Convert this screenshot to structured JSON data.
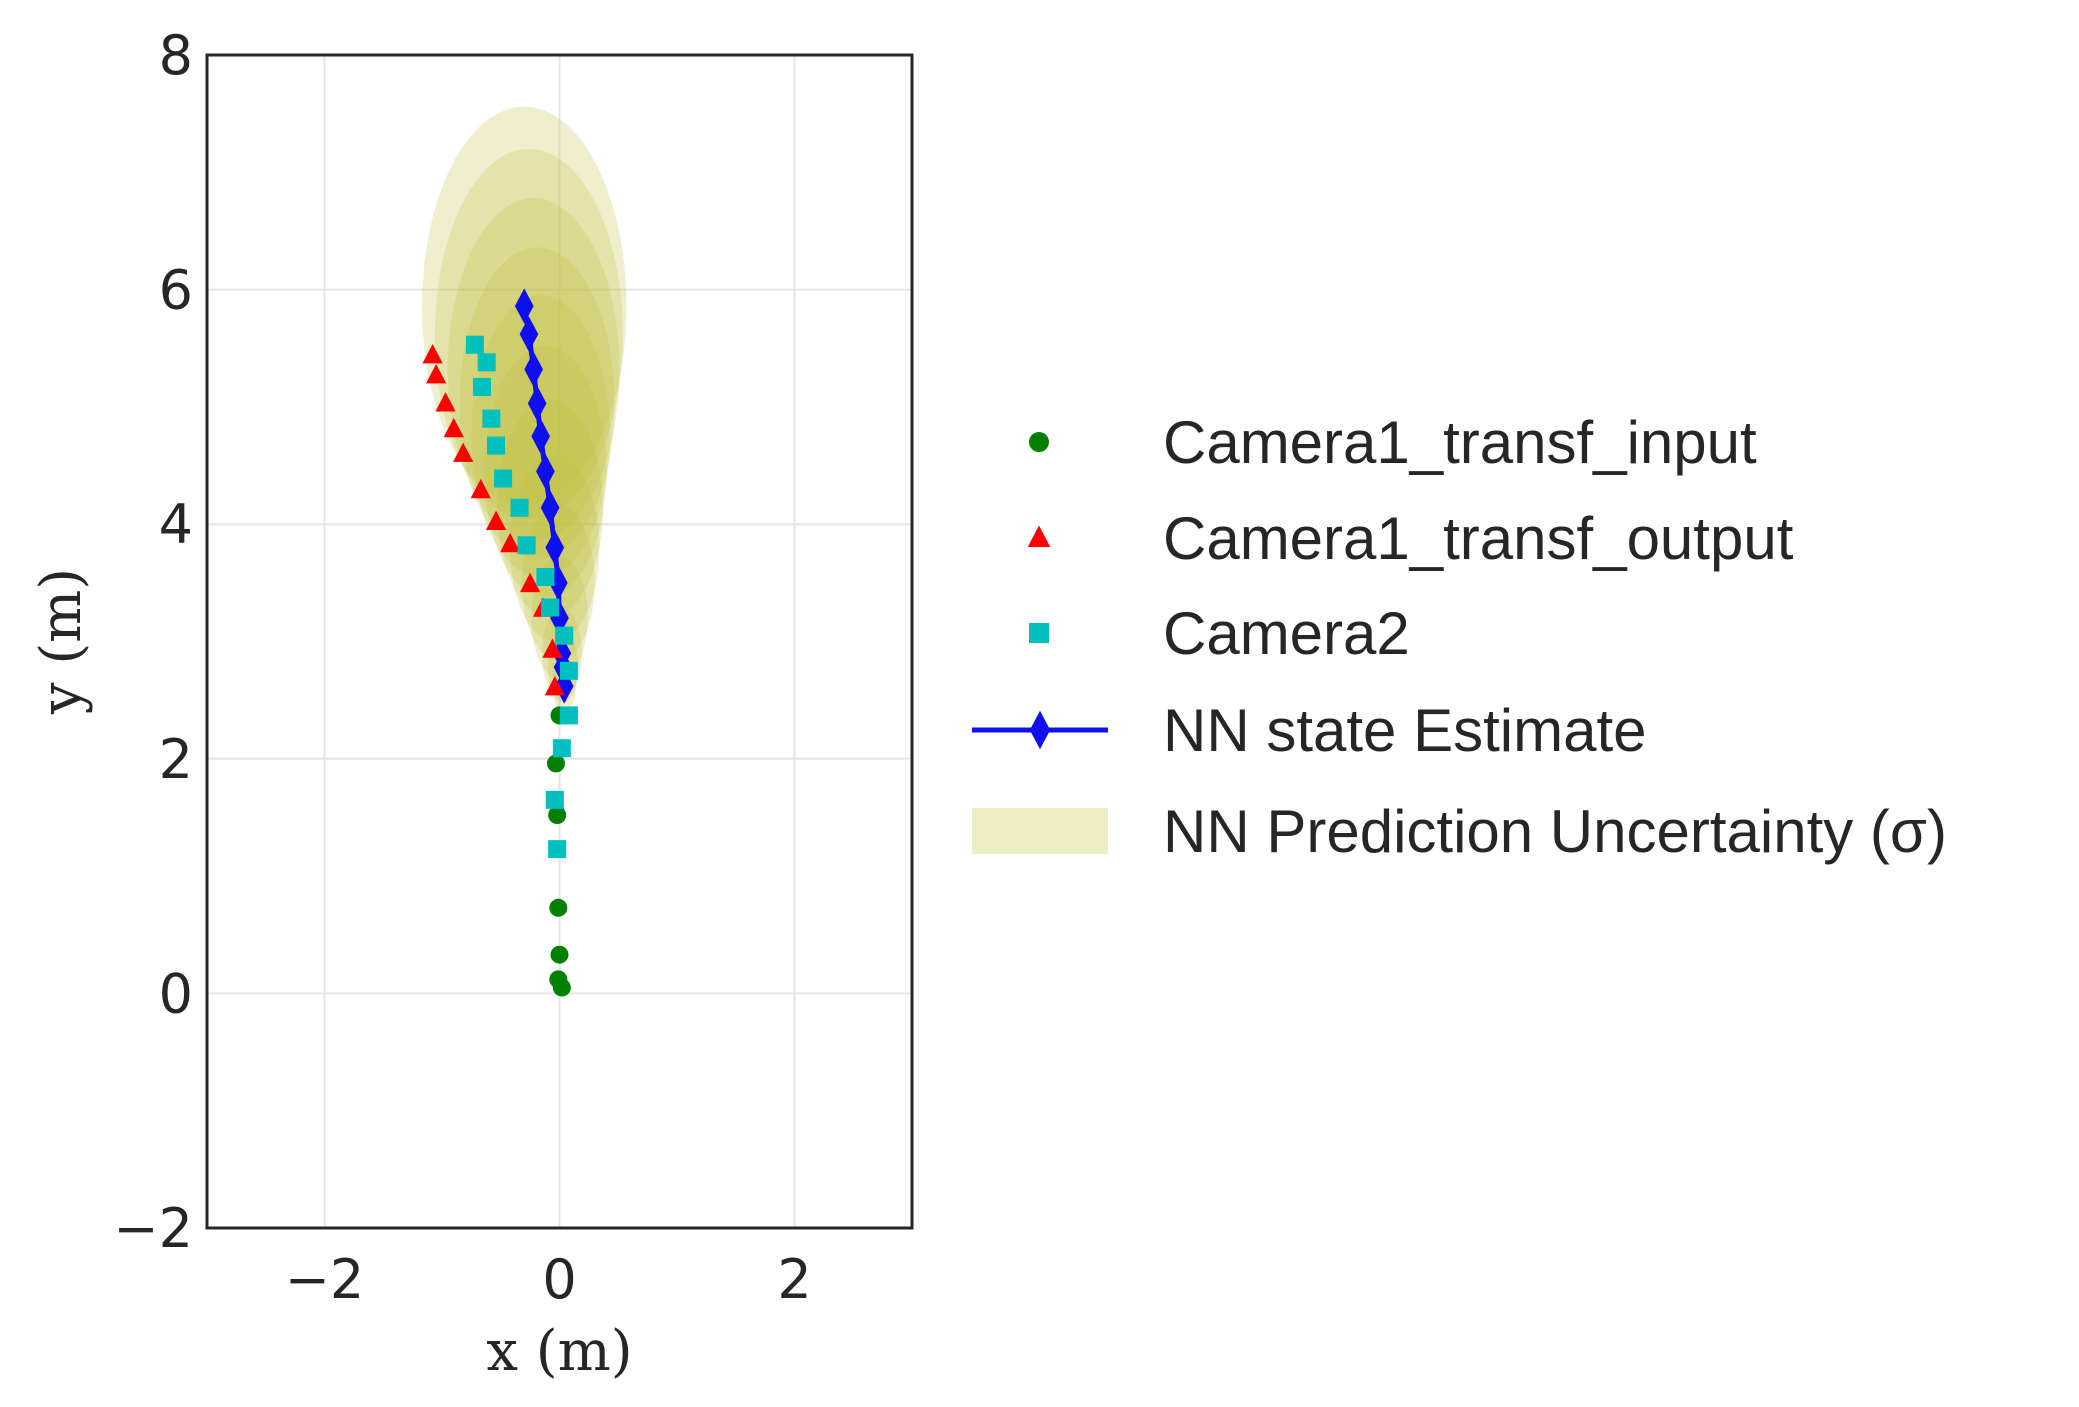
{
  "chart_data": {
    "type": "scatter",
    "title": "",
    "xlabel": "x (m)",
    "ylabel": "y (m)",
    "xlim": [
      -3,
      3
    ],
    "ylim": [
      -2,
      8
    ],
    "xticks": [
      -2,
      0,
      2
    ],
    "yticks": [
      -2,
      0,
      2,
      4,
      6,
      8
    ],
    "xtick_labels": [
      "−2",
      "0",
      "2"
    ],
    "ytick_labels": [
      "−2",
      "0",
      "2",
      "4",
      "6",
      "8"
    ],
    "grid": true,
    "legend_placement": "outside-right",
    "series": [
      {
        "name": "Camera1_transf_input",
        "kind": "scatter",
        "marker": "circle",
        "color": "#008000",
        "x": [
          0.02,
          -0.01,
          0.0,
          -0.01,
          -0.02,
          -0.03,
          0.0
        ],
        "y": [
          0.05,
          0.12,
          0.33,
          0.73,
          1.52,
          1.96,
          2.37
        ]
      },
      {
        "name": "Camera1_transf_output",
        "kind": "scatter",
        "marker": "triangle",
        "color": "#ff0000",
        "x": [
          -1.08,
          -1.05,
          -0.97,
          -0.9,
          -0.82,
          -0.67,
          -0.54,
          -0.42,
          -0.25,
          -0.14,
          -0.06,
          -0.04
        ],
        "y": [
          5.44,
          5.27,
          5.03,
          4.81,
          4.6,
          4.29,
          4.02,
          3.83,
          3.49,
          3.28,
          2.93,
          2.61
        ]
      },
      {
        "name": "Camera2",
        "kind": "scatter",
        "marker": "square",
        "color": "#00bfbf",
        "x": [
          -0.72,
          -0.62,
          -0.66,
          -0.58,
          -0.54,
          -0.48,
          -0.34,
          -0.28,
          -0.12,
          -0.08,
          0.04,
          0.08,
          0.08,
          0.02,
          -0.04,
          -0.02
        ],
        "y": [
          5.53,
          5.38,
          5.17,
          4.9,
          4.67,
          4.39,
          4.14,
          3.82,
          3.55,
          3.29,
          3.05,
          2.75,
          2.37,
          2.09,
          1.65,
          1.23
        ]
      },
      {
        "name": "NN state Estimate",
        "kind": "line",
        "marker": "thin_diamond",
        "color": "#1010ee",
        "x": [
          -0.3,
          -0.26,
          -0.22,
          -0.19,
          -0.16,
          -0.12,
          -0.08,
          -0.04,
          -0.01,
          0.0,
          0.02,
          0.03,
          0.04
        ],
        "y": [
          5.86,
          5.62,
          5.32,
          5.03,
          4.75,
          4.45,
          4.14,
          3.8,
          3.5,
          3.2,
          2.9,
          2.78,
          2.62
        ]
      },
      {
        "name": "NN Prediction Uncertainty (σ)",
        "kind": "ellipses",
        "color": "#bfbf3f",
        "opacity": 0.25,
        "cx": [
          -0.3,
          -0.26,
          -0.22,
          -0.19,
          -0.16,
          -0.12,
          -0.08,
          -0.04,
          -0.01,
          0.0,
          0.02,
          0.03,
          0.04
        ],
        "cy": [
          5.86,
          5.62,
          5.32,
          5.03,
          4.75,
          4.45,
          4.14,
          3.8,
          3.5,
          3.2,
          2.9,
          2.78,
          2.62
        ],
        "rx": [
          0.87,
          0.8,
          0.73,
          0.66,
          0.59,
          0.52,
          0.45,
          0.38,
          0.31,
          0.24,
          0.17,
          0.13,
          0.1
        ],
        "ry": [
          1.7,
          1.58,
          1.46,
          1.33,
          1.2,
          1.07,
          0.93,
          0.8,
          0.66,
          0.52,
          0.38,
          0.3,
          0.22
        ]
      }
    ]
  }
}
